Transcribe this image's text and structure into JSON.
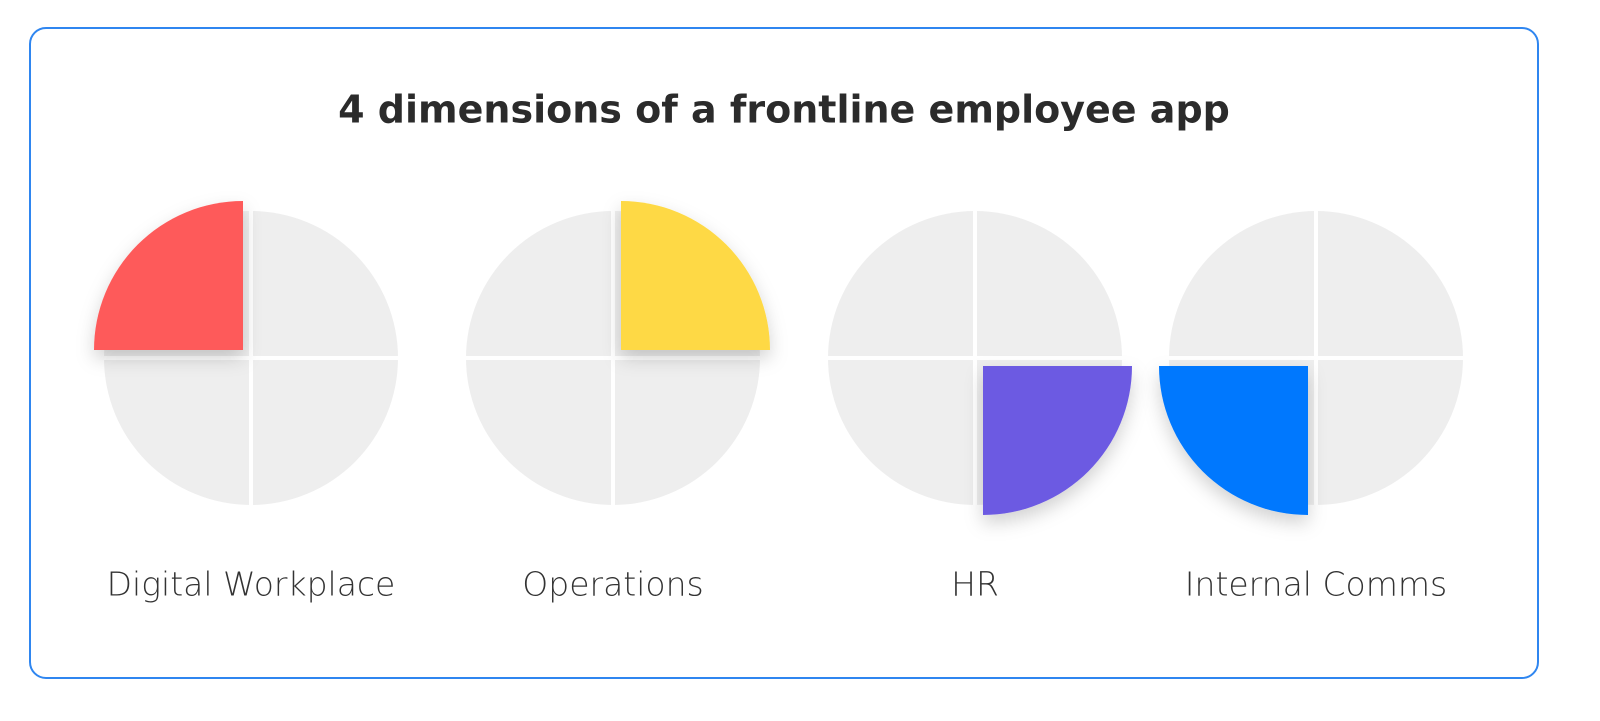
{
  "title": "4 dimensions of a frontline employee app",
  "items": [
    {
      "label": "Digital Workplace"
    },
    {
      "label": "Operations"
    },
    {
      "label": "HR"
    },
    {
      "label": "Internal Comms"
    }
  ]
}
